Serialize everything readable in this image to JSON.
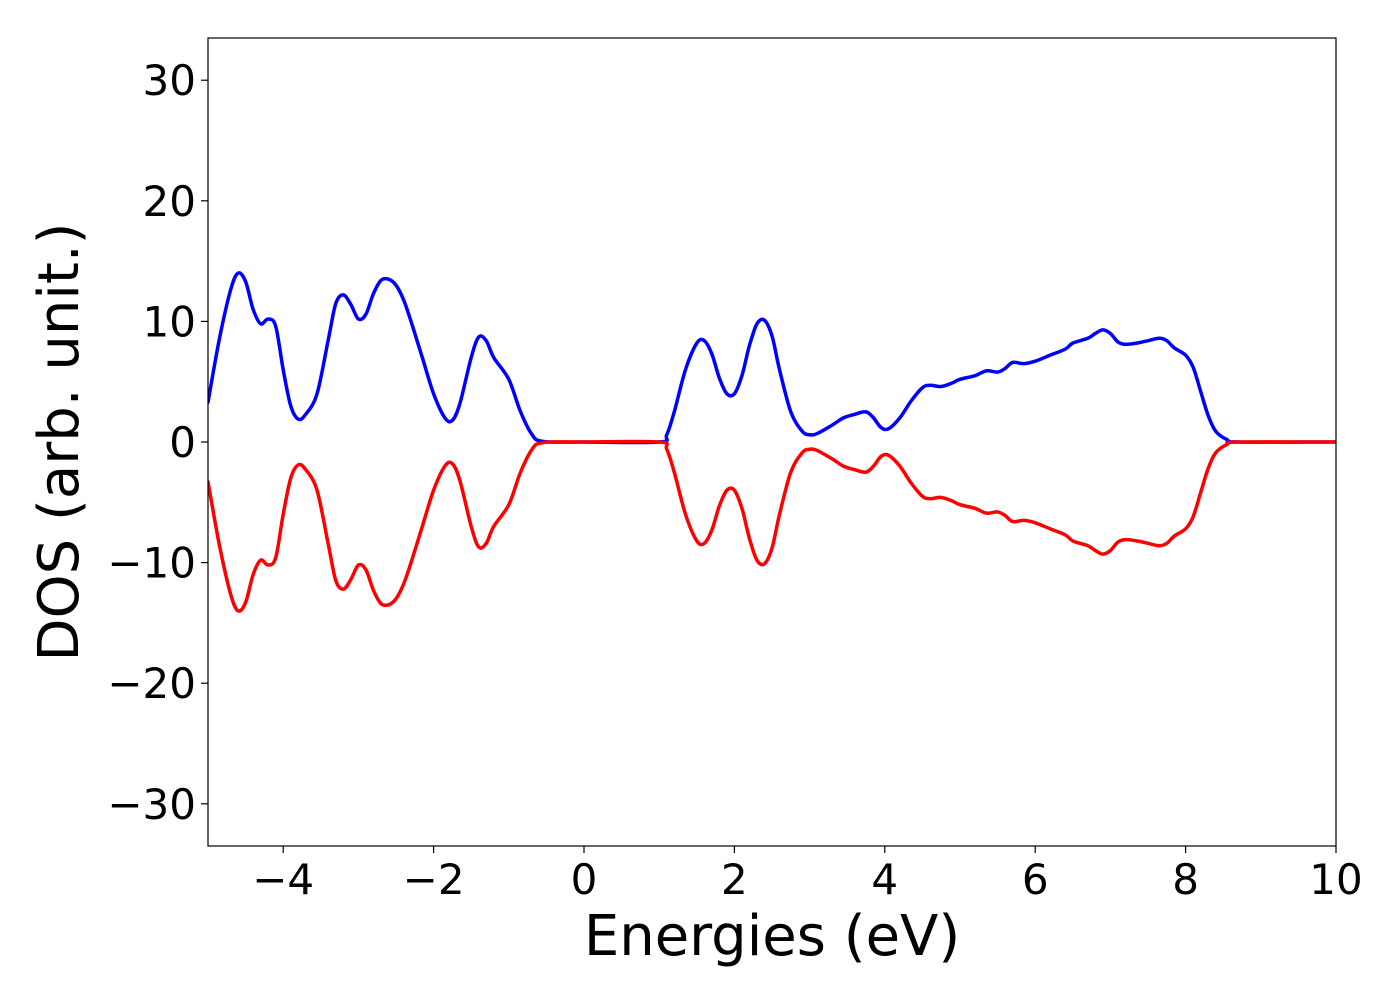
{
  "chart_data": {
    "type": "line",
    "title": "",
    "xlabel": "Energies (eV)",
    "ylabel": "DOS (arb. unit.)",
    "xlim": [
      -5,
      10
    ],
    "ylim": [
      -33.5,
      33.5
    ],
    "grid": false,
    "legend": "none",
    "x_ticks": [
      -4,
      -2,
      0,
      2,
      4,
      6,
      8,
      10
    ],
    "x_tick_labels": [
      "−4",
      "−2",
      "0",
      "2",
      "4",
      "6",
      "8",
      "10"
    ],
    "y_ticks": [
      30,
      20,
      10,
      0,
      -10,
      -20,
      -30
    ],
    "y_tick_labels": [
      "30",
      "20",
      "10",
      "0",
      "−10",
      "−20",
      "−30"
    ],
    "series": [
      {
        "color": "#0000ff",
        "points": [
          [
            -5.0,
            3.3
          ],
          [
            -4.85,
            8.5
          ],
          [
            -4.7,
            12.6
          ],
          [
            -4.6,
            14.0
          ],
          [
            -4.5,
            13.3
          ],
          [
            -4.4,
            11.0
          ],
          [
            -4.3,
            9.8
          ],
          [
            -4.2,
            10.2
          ],
          [
            -4.1,
            9.6
          ],
          [
            -4.0,
            6.0
          ],
          [
            -3.9,
            3.0
          ],
          [
            -3.8,
            1.9
          ],
          [
            -3.7,
            2.3
          ],
          [
            -3.55,
            4.0
          ],
          [
            -3.4,
            8.5
          ],
          [
            -3.3,
            11.5
          ],
          [
            -3.2,
            12.2
          ],
          [
            -3.1,
            11.4
          ],
          [
            -3.0,
            10.2
          ],
          [
            -2.9,
            10.6
          ],
          [
            -2.8,
            12.3
          ],
          [
            -2.7,
            13.4
          ],
          [
            -2.6,
            13.5
          ],
          [
            -2.5,
            13.0
          ],
          [
            -2.4,
            11.8
          ],
          [
            -2.3,
            10.0
          ],
          [
            -2.15,
            7.0
          ],
          [
            -2.0,
            4.0
          ],
          [
            -1.85,
            2.0
          ],
          [
            -1.75,
            1.8
          ],
          [
            -1.65,
            3.2
          ],
          [
            -1.5,
            7.0
          ],
          [
            -1.4,
            8.7
          ],
          [
            -1.3,
            8.4
          ],
          [
            -1.2,
            7.0
          ],
          [
            -1.0,
            5.2
          ],
          [
            -0.85,
            2.6
          ],
          [
            -0.7,
            0.7
          ],
          [
            -0.55,
            0.05
          ],
          [
            0.0,
            0.0
          ],
          [
            1.0,
            0.0
          ],
          [
            1.1,
            0.6
          ],
          [
            1.2,
            2.5
          ],
          [
            1.35,
            6.0
          ],
          [
            1.5,
            8.2
          ],
          [
            1.6,
            8.4
          ],
          [
            1.7,
            7.3
          ],
          [
            1.8,
            5.3
          ],
          [
            1.9,
            4.0
          ],
          [
            2.0,
            4.0
          ],
          [
            2.1,
            5.5
          ],
          [
            2.2,
            8.0
          ],
          [
            2.3,
            9.8
          ],
          [
            2.4,
            10.1
          ],
          [
            2.5,
            8.8
          ],
          [
            2.6,
            6.0
          ],
          [
            2.75,
            2.5
          ],
          [
            2.9,
            0.9
          ],
          [
            3.0,
            0.6
          ],
          [
            3.1,
            0.7
          ],
          [
            3.3,
            1.4
          ],
          [
            3.45,
            2.0
          ],
          [
            3.6,
            2.3
          ],
          [
            3.75,
            2.5
          ],
          [
            3.85,
            2.0
          ],
          [
            3.95,
            1.2
          ],
          [
            4.05,
            1.1
          ],
          [
            4.2,
            2.0
          ],
          [
            4.35,
            3.4
          ],
          [
            4.5,
            4.5
          ],
          [
            4.6,
            4.7
          ],
          [
            4.75,
            4.6
          ],
          [
            4.9,
            4.9
          ],
          [
            5.0,
            5.2
          ],
          [
            5.2,
            5.5
          ],
          [
            5.35,
            5.9
          ],
          [
            5.5,
            5.8
          ],
          [
            5.6,
            6.1
          ],
          [
            5.7,
            6.6
          ],
          [
            5.85,
            6.5
          ],
          [
            6.0,
            6.7
          ],
          [
            6.2,
            7.2
          ],
          [
            6.4,
            7.7
          ],
          [
            6.5,
            8.2
          ],
          [
            6.7,
            8.6
          ],
          [
            6.8,
            9.0
          ],
          [
            6.9,
            9.3
          ],
          [
            7.0,
            9.0
          ],
          [
            7.1,
            8.3
          ],
          [
            7.2,
            8.1
          ],
          [
            7.35,
            8.2
          ],
          [
            7.5,
            8.4
          ],
          [
            7.65,
            8.6
          ],
          [
            7.75,
            8.4
          ],
          [
            7.85,
            7.8
          ],
          [
            8.0,
            7.2
          ],
          [
            8.1,
            6.2
          ],
          [
            8.2,
            4.2
          ],
          [
            8.3,
            2.2
          ],
          [
            8.4,
            0.9
          ],
          [
            8.55,
            0.2
          ],
          [
            8.7,
            0.0
          ],
          [
            10.0,
            0.0
          ]
        ]
      },
      {
        "color": "#ff0000",
        "points": [
          [
            -5.0,
            -3.3
          ],
          [
            -4.85,
            -8.5
          ],
          [
            -4.7,
            -12.6
          ],
          [
            -4.6,
            -14.0
          ],
          [
            -4.5,
            -13.3
          ],
          [
            -4.4,
            -11.0
          ],
          [
            -4.3,
            -9.8
          ],
          [
            -4.2,
            -10.2
          ],
          [
            -4.1,
            -9.6
          ],
          [
            -4.0,
            -6.0
          ],
          [
            -3.9,
            -3.0
          ],
          [
            -3.8,
            -1.9
          ],
          [
            -3.7,
            -2.3
          ],
          [
            -3.55,
            -4.0
          ],
          [
            -3.4,
            -8.5
          ],
          [
            -3.3,
            -11.5
          ],
          [
            -3.2,
            -12.2
          ],
          [
            -3.1,
            -11.4
          ],
          [
            -3.0,
            -10.2
          ],
          [
            -2.9,
            -10.6
          ],
          [
            -2.8,
            -12.3
          ],
          [
            -2.7,
            -13.4
          ],
          [
            -2.6,
            -13.5
          ],
          [
            -2.5,
            -13.0
          ],
          [
            -2.4,
            -11.8
          ],
          [
            -2.3,
            -10.0
          ],
          [
            -2.15,
            -7.0
          ],
          [
            -2.0,
            -4.0
          ],
          [
            -1.85,
            -2.0
          ],
          [
            -1.75,
            -1.8
          ],
          [
            -1.65,
            -3.2
          ],
          [
            -1.5,
            -7.0
          ],
          [
            -1.4,
            -8.7
          ],
          [
            -1.3,
            -8.4
          ],
          [
            -1.2,
            -7.0
          ],
          [
            -1.0,
            -5.2
          ],
          [
            -0.85,
            -2.6
          ],
          [
            -0.7,
            -0.7
          ],
          [
            -0.55,
            -0.05
          ],
          [
            0.0,
            0.0
          ],
          [
            1.0,
            0.0
          ],
          [
            1.1,
            -0.6
          ],
          [
            1.2,
            -2.5
          ],
          [
            1.35,
            -6.0
          ],
          [
            1.5,
            -8.2
          ],
          [
            1.6,
            -8.4
          ],
          [
            1.7,
            -7.3
          ],
          [
            1.8,
            -5.3
          ],
          [
            1.9,
            -4.0
          ],
          [
            2.0,
            -4.0
          ],
          [
            2.1,
            -5.5
          ],
          [
            2.2,
            -8.0
          ],
          [
            2.3,
            -9.8
          ],
          [
            2.4,
            -10.1
          ],
          [
            2.5,
            -8.8
          ],
          [
            2.6,
            -6.0
          ],
          [
            2.75,
            -2.5
          ],
          [
            2.9,
            -0.9
          ],
          [
            3.0,
            -0.6
          ],
          [
            3.1,
            -0.7
          ],
          [
            3.3,
            -1.4
          ],
          [
            3.45,
            -2.0
          ],
          [
            3.6,
            -2.3
          ],
          [
            3.75,
            -2.5
          ],
          [
            3.85,
            -2.0
          ],
          [
            3.95,
            -1.2
          ],
          [
            4.05,
            -1.1
          ],
          [
            4.2,
            -2.0
          ],
          [
            4.35,
            -3.4
          ],
          [
            4.5,
            -4.5
          ],
          [
            4.6,
            -4.7
          ],
          [
            4.75,
            -4.6
          ],
          [
            4.9,
            -4.9
          ],
          [
            5.0,
            -5.2
          ],
          [
            5.2,
            -5.5
          ],
          [
            5.35,
            -5.9
          ],
          [
            5.5,
            -5.8
          ],
          [
            5.6,
            -6.1
          ],
          [
            5.7,
            -6.6
          ],
          [
            5.85,
            -6.5
          ],
          [
            6.0,
            -6.7
          ],
          [
            6.2,
            -7.2
          ],
          [
            6.4,
            -7.7
          ],
          [
            6.5,
            -8.2
          ],
          [
            6.7,
            -8.6
          ],
          [
            6.8,
            -9.0
          ],
          [
            6.9,
            -9.3
          ],
          [
            7.0,
            -9.0
          ],
          [
            7.1,
            -8.3
          ],
          [
            7.2,
            -8.1
          ],
          [
            7.35,
            -8.2
          ],
          [
            7.5,
            -8.4
          ],
          [
            7.65,
            -8.6
          ],
          [
            7.75,
            -8.4
          ],
          [
            7.85,
            -7.8
          ],
          [
            8.0,
            -7.2
          ],
          [
            8.1,
            -6.2
          ],
          [
            8.2,
            -4.2
          ],
          [
            8.3,
            -2.2
          ],
          [
            8.4,
            -0.9
          ],
          [
            8.55,
            -0.2
          ],
          [
            8.7,
            0.0
          ],
          [
            10.0,
            0.0
          ]
        ]
      }
    ]
  }
}
